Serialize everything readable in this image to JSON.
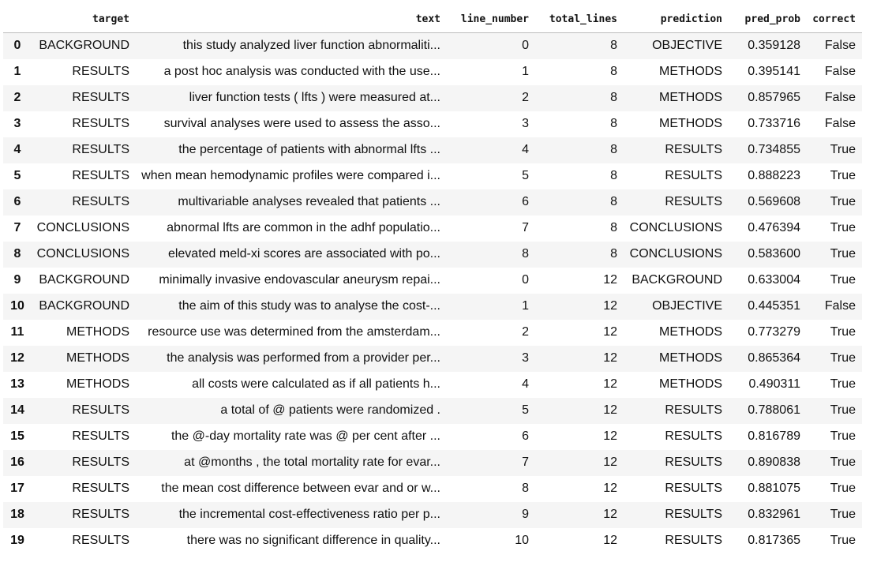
{
  "table": {
    "columns": [
      "target",
      "text",
      "line_number",
      "total_lines",
      "prediction",
      "pred_prob",
      "correct"
    ],
    "rows": [
      {
        "index": "0",
        "target": "BACKGROUND",
        "text": "this study analyzed liver function abnormaliti...",
        "line_number": "0",
        "total_lines": "8",
        "prediction": "OBJECTIVE",
        "pred_prob": "0.359128",
        "correct": "False"
      },
      {
        "index": "1",
        "target": "RESULTS",
        "text": "a post hoc analysis was conducted with the use...",
        "line_number": "1",
        "total_lines": "8",
        "prediction": "METHODS",
        "pred_prob": "0.395141",
        "correct": "False"
      },
      {
        "index": "2",
        "target": "RESULTS",
        "text": "liver function tests ( lfts ) were measured at...",
        "line_number": "2",
        "total_lines": "8",
        "prediction": "METHODS",
        "pred_prob": "0.857965",
        "correct": "False"
      },
      {
        "index": "3",
        "target": "RESULTS",
        "text": "survival analyses were used to assess the asso...",
        "line_number": "3",
        "total_lines": "8",
        "prediction": "METHODS",
        "pred_prob": "0.733716",
        "correct": "False"
      },
      {
        "index": "4",
        "target": "RESULTS",
        "text": "the percentage of patients with abnormal lfts ...",
        "line_number": "4",
        "total_lines": "8",
        "prediction": "RESULTS",
        "pred_prob": "0.734855",
        "correct": "True"
      },
      {
        "index": "5",
        "target": "RESULTS",
        "text": "when mean hemodynamic profiles were compared i...",
        "line_number": "5",
        "total_lines": "8",
        "prediction": "RESULTS",
        "pred_prob": "0.888223",
        "correct": "True"
      },
      {
        "index": "6",
        "target": "RESULTS",
        "text": "multivariable analyses revealed that patients ...",
        "line_number": "6",
        "total_lines": "8",
        "prediction": "RESULTS",
        "pred_prob": "0.569608",
        "correct": "True"
      },
      {
        "index": "7",
        "target": "CONCLUSIONS",
        "text": "abnormal lfts are common in the adhf populatio...",
        "line_number": "7",
        "total_lines": "8",
        "prediction": "CONCLUSIONS",
        "pred_prob": "0.476394",
        "correct": "True"
      },
      {
        "index": "8",
        "target": "CONCLUSIONS",
        "text": "elevated meld-xi scores are associated with po...",
        "line_number": "8",
        "total_lines": "8",
        "prediction": "CONCLUSIONS",
        "pred_prob": "0.583600",
        "correct": "True"
      },
      {
        "index": "9",
        "target": "BACKGROUND",
        "text": "minimally invasive endovascular aneurysm repai...",
        "line_number": "0",
        "total_lines": "12",
        "prediction": "BACKGROUND",
        "pred_prob": "0.633004",
        "correct": "True"
      },
      {
        "index": "10",
        "target": "BACKGROUND",
        "text": "the aim of this study was to analyse the cost-...",
        "line_number": "1",
        "total_lines": "12",
        "prediction": "OBJECTIVE",
        "pred_prob": "0.445351",
        "correct": "False"
      },
      {
        "index": "11",
        "target": "METHODS",
        "text": "resource use was determined from the amsterdam...",
        "line_number": "2",
        "total_lines": "12",
        "prediction": "METHODS",
        "pred_prob": "0.773279",
        "correct": "True"
      },
      {
        "index": "12",
        "target": "METHODS",
        "text": "the analysis was performed from a provider per...",
        "line_number": "3",
        "total_lines": "12",
        "prediction": "METHODS",
        "pred_prob": "0.865364",
        "correct": "True"
      },
      {
        "index": "13",
        "target": "METHODS",
        "text": "all costs were calculated as if all patients h...",
        "line_number": "4",
        "total_lines": "12",
        "prediction": "METHODS",
        "pred_prob": "0.490311",
        "correct": "True"
      },
      {
        "index": "14",
        "target": "RESULTS",
        "text": "a total of @ patients were randomized .",
        "line_number": "5",
        "total_lines": "12",
        "prediction": "RESULTS",
        "pred_prob": "0.788061",
        "correct": "True"
      },
      {
        "index": "15",
        "target": "RESULTS",
        "text": "the @-day mortality rate was @ per cent after ...",
        "line_number": "6",
        "total_lines": "12",
        "prediction": "RESULTS",
        "pred_prob": "0.816789",
        "correct": "True"
      },
      {
        "index": "16",
        "target": "RESULTS",
        "text": "at @months , the total mortality rate for evar...",
        "line_number": "7",
        "total_lines": "12",
        "prediction": "RESULTS",
        "pred_prob": "0.890838",
        "correct": "True"
      },
      {
        "index": "17",
        "target": "RESULTS",
        "text": "the mean cost difference between evar and or w...",
        "line_number": "8",
        "total_lines": "12",
        "prediction": "RESULTS",
        "pred_prob": "0.881075",
        "correct": "True"
      },
      {
        "index": "18",
        "target": "RESULTS",
        "text": "the incremental cost-effectiveness ratio per p...",
        "line_number": "9",
        "total_lines": "12",
        "prediction": "RESULTS",
        "pred_prob": "0.832961",
        "correct": "True"
      },
      {
        "index": "19",
        "target": "RESULTS",
        "text": "there was no significant difference in quality...",
        "line_number": "10",
        "total_lines": "12",
        "prediction": "RESULTS",
        "pred_prob": "0.817365",
        "correct": "True"
      }
    ]
  }
}
